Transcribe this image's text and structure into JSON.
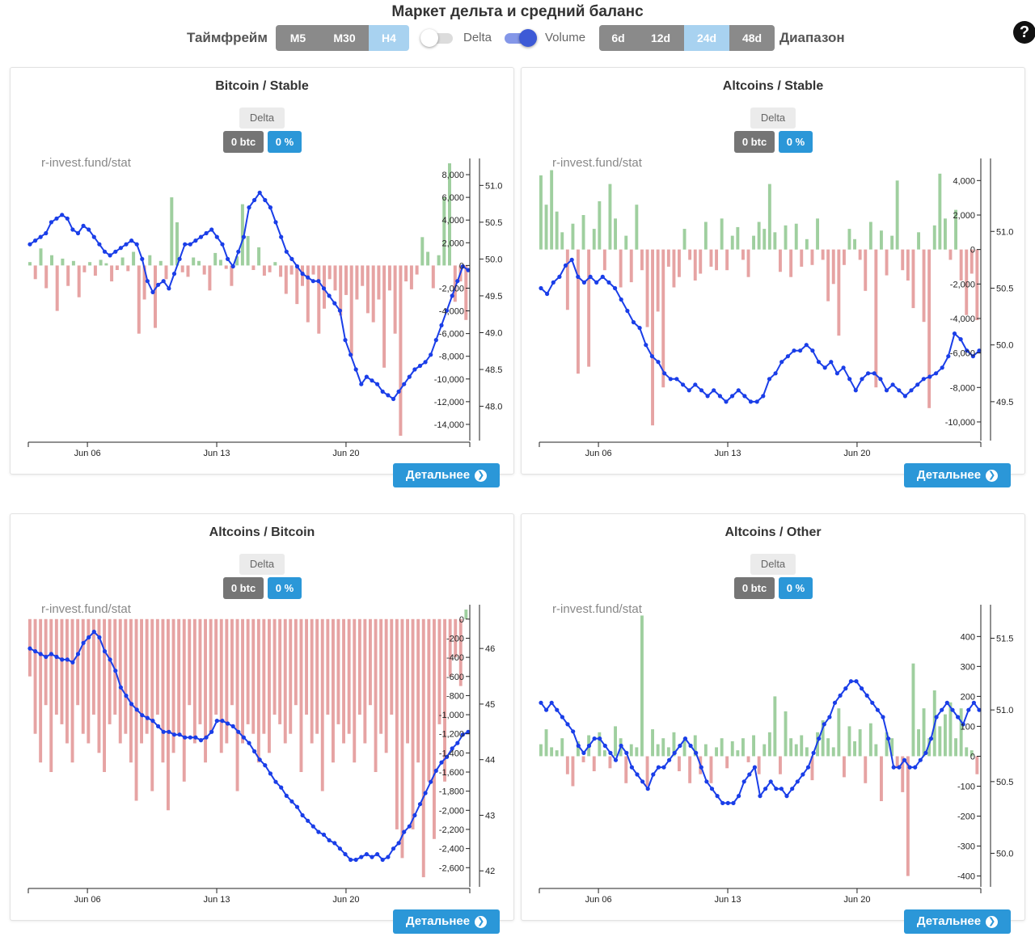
{
  "header": {
    "title": "Маркет дельта и средний баланс",
    "timeframe_label": "Таймфрейм",
    "timeframes": [
      "M5",
      "M30",
      "H4"
    ],
    "timeframe_selected": "H4",
    "toggle_delta": {
      "label": "Delta",
      "on": false
    },
    "toggle_volume": {
      "label": "Volume",
      "on": true
    },
    "ranges": [
      "6d",
      "12d",
      "24d",
      "48d"
    ],
    "range_selected": "24d",
    "range_label": "Диапазон",
    "help_icon": "?"
  },
  "colors": {
    "positive_bar": "#9fcf9f",
    "negative_bar": "#e6a3a3",
    "line": "#1a3ee8",
    "button": "#2b97d8",
    "badge_grey": "#757575",
    "active_segment": "#a8d2f0"
  },
  "panel_common": {
    "delta_tag": "Delta",
    "btc_badge": "0 btc",
    "pct_badge": "0 %",
    "watermark": "r-invest.fund/stat",
    "detail_button": "Детальнее",
    "detail_icon": "chevron-right-circle-icon"
  },
  "panels": [
    {
      "title": "Bitcoin / Stable"
    },
    {
      "title": "Altcoins / Stable"
    },
    {
      "title": "Altcoins / Bitcoin"
    },
    {
      "title": "Altcoins / Other"
    }
  ],
  "chart_data": [
    {
      "type": "bar+line",
      "title": "Bitcoin / Stable",
      "x_ticks": [
        "Jun 06",
        "Jun 13",
        "Jun 20"
      ],
      "x_tick_positions_day": [
        6,
        13,
        20
      ],
      "x_range_day": [
        2.8,
        26.7
      ],
      "bars_left_axis": {
        "ylim": [
          -15000,
          9000
        ],
        "ticks": [
          "8,000",
          "6,000",
          "4,000",
          "2,000",
          "0",
          "-2,000",
          "-4,000",
          "-6,000",
          "-8,000",
          "-10,000",
          "-12,000",
          "-14,000"
        ],
        "tick_values": [
          8000,
          6000,
          4000,
          2000,
          0,
          -2000,
          -4000,
          -6000,
          -8000,
          -10000,
          -12000,
          -14000
        ]
      },
      "line_right_axis": {
        "ylim": [
          47.6,
          51.3
        ],
        "ticks": [
          "51.0",
          "50.5",
          "50.0",
          "49.5",
          "49.0",
          "48.5",
          "48.0"
        ],
        "tick_values": [
          51.0,
          50.5,
          50.0,
          49.5,
          49.0,
          48.5,
          48.0
        ]
      },
      "bar_samples": [
        300,
        -1200,
        1500,
        -2000,
        900,
        -4000,
        600,
        -1800,
        400,
        -2800,
        -600,
        300,
        -900,
        500,
        200,
        -1400,
        -400,
        700,
        -500,
        1200,
        -6000,
        -3000,
        900,
        -5500,
        400,
        -1200,
        6000,
        3800,
        -600,
        -1000,
        700,
        400,
        -800,
        -2200,
        1100,
        500,
        -300,
        -1800,
        800,
        5400,
        2600,
        -400,
        1600,
        -900,
        -600,
        300,
        -1000,
        -2500,
        -800,
        -3400,
        -1800,
        -5000,
        -800,
        -6000,
        -3800,
        -1200,
        -2200,
        -4400,
        -2600,
        -8000,
        -3000,
        -1800,
        -4200,
        -5000,
        -3000,
        -9000,
        -2200,
        -6000,
        -15000,
        -1400,
        -2100,
        -800,
        2500,
        1200,
        -2000,
        900,
        6000,
        9000,
        -3200,
        -1400,
        -4800
      ],
      "line_samples": [
        50.2,
        50.25,
        50.3,
        50.35,
        50.5,
        50.55,
        50.6,
        50.55,
        50.4,
        50.35,
        50.45,
        50.4,
        50.3,
        50.2,
        50.1,
        50.05,
        50.1,
        50.15,
        50.2,
        50.25,
        50.2,
        50.0,
        49.7,
        49.55,
        49.65,
        49.7,
        49.6,
        49.8,
        50.0,
        50.2,
        50.2,
        50.25,
        50.3,
        50.35,
        50.4,
        50.3,
        50.2,
        50.0,
        49.9,
        50.1,
        50.3,
        50.7,
        50.8,
        50.9,
        50.8,
        50.7,
        50.5,
        50.3,
        50.1,
        50.0,
        49.9,
        49.8,
        49.75,
        49.7,
        49.7,
        49.6,
        49.5,
        49.4,
        49.3,
        48.9,
        48.7,
        48.5,
        48.3,
        48.4,
        48.35,
        48.3,
        48.2,
        48.15,
        48.1,
        48.2,
        48.3,
        48.4,
        48.5,
        48.55,
        48.6,
        48.7,
        48.9,
        49.1,
        49.3,
        49.5,
        49.7,
        49.9,
        49.85
      ]
    },
    {
      "type": "bar+line",
      "title": "Altcoins / Stable",
      "x_ticks": [
        "Jun 06",
        "Jun 13",
        "Jun 20"
      ],
      "x_tick_positions_day": [
        6,
        13,
        20
      ],
      "x_range_day": [
        2.8,
        26.7
      ],
      "bars_left_axis": {
        "ylim": [
          -10800,
          5000
        ],
        "ticks": [
          "4,000",
          "2,000",
          "0",
          "-2,000",
          "-4,000",
          "-6,000",
          "-8,000",
          "-10,000"
        ],
        "tick_values": [
          4000,
          2000,
          0,
          -2000,
          -4000,
          -6000,
          -8000,
          -10000
        ]
      },
      "line_right_axis": {
        "ylim": [
          49.2,
          51.6
        ],
        "ticks": [
          "51.0",
          "50.5",
          "50.0",
          "49.5"
        ],
        "tick_values": [
          51.0,
          50.5,
          50.0,
          49.5
        ]
      },
      "bar_samples": [
        4300,
        2600,
        4600,
        2200,
        1000,
        -3500,
        1500,
        -7200,
        2000,
        -6800,
        1200,
        2800,
        -1200,
        3800,
        1800,
        -2200,
        800,
        -1900,
        2600,
        -1200,
        -4500,
        -10200,
        -3600,
        -8000,
        -1000,
        -2200,
        -1600,
        1200,
        -600,
        -1800,
        -1400,
        1600,
        -1000,
        -1200,
        1800,
        -1200,
        800,
        1300,
        -600,
        -1600,
        800,
        1600,
        1200,
        3800,
        1000,
        -1300,
        1400,
        -1600,
        1500,
        -1000,
        600,
        -900,
        1800,
        -600,
        -3000,
        -2000,
        -5000,
        -900,
        1200,
        600,
        -600,
        -2400,
        1600,
        -8000,
        1100,
        -1500,
        800,
        4000,
        -1200,
        -1800,
        -3400,
        1000,
        -4200,
        -9200,
        1400,
        4400,
        1800,
        -600,
        2300,
        -1800,
        -3800,
        -1400,
        -4100
      ],
      "line_samples": [
        50.5,
        50.45,
        50.55,
        50.6,
        50.7,
        50.75,
        50.6,
        50.55,
        50.6,
        50.55,
        50.6,
        50.55,
        50.5,
        50.4,
        50.3,
        50.2,
        50.15,
        50.0,
        49.9,
        49.85,
        49.75,
        49.7,
        49.7,
        49.65,
        49.6,
        49.65,
        49.6,
        49.55,
        49.6,
        49.55,
        49.5,
        49.55,
        49.6,
        49.55,
        49.5,
        49.5,
        49.55,
        49.7,
        49.75,
        49.85,
        49.9,
        49.95,
        49.95,
        50.0,
        49.95,
        49.85,
        49.8,
        49.85,
        49.75,
        49.8,
        49.7,
        49.6,
        49.7,
        49.75,
        49.75,
        49.7,
        49.6,
        49.65,
        49.6,
        49.55,
        49.6,
        49.65,
        49.7,
        49.72,
        49.75,
        49.8,
        49.9,
        50.1,
        50.05,
        49.95,
        49.9,
        49.95
      ]
    },
    {
      "type": "bar+line",
      "title": "Altcoins / Bitcoin",
      "x_ticks": [
        "Jun 06",
        "Jun 13",
        "Jun 20"
      ],
      "x_tick_positions_day": [
        6,
        13,
        20
      ],
      "x_range_day": [
        2.8,
        26.7
      ],
      "bars_left_axis": {
        "ylim": [
          -2750,
          100
        ],
        "ticks": [
          "0",
          "-200",
          "-400",
          "-600",
          "-800",
          "-1,000",
          "-1,200",
          "-1,400",
          "-1,600",
          "-1,800",
          "-2,000",
          "-2,200",
          "-2,400",
          "-2,600"
        ],
        "tick_values": [
          0,
          -200,
          -400,
          -600,
          -800,
          -1000,
          -1200,
          -1400,
          -1600,
          -1800,
          -2000,
          -2200,
          -2400,
          -2600
        ]
      },
      "line_right_axis": {
        "ylim": [
          41.8,
          46.7
        ],
        "ticks": [
          "46",
          "45",
          "44",
          "43",
          "42"
        ],
        "tick_values": [
          46,
          45,
          44,
          43,
          42
        ]
      },
      "bar_samples": [
        -600,
        -1200,
        -1500,
        -900,
        -1600,
        -1000,
        -1100,
        -1300,
        -1500,
        -900,
        -1200,
        -1300,
        -1000,
        -1400,
        -1600,
        -1100,
        -1000,
        -1300,
        -1200,
        -1500,
        -1900,
        -1300,
        -1200,
        -1800,
        -1000,
        -1500,
        -2000,
        -1400,
        -1200,
        -1700,
        -900,
        -1300,
        -1100,
        -1500,
        -1200,
        -1000,
        -1400,
        -1300,
        -900,
        -1800,
        -1300,
        -1100,
        -1200,
        -1500,
        -1200,
        -1400,
        -1000,
        -1100,
        -1300,
        -1200,
        -900,
        -1600,
        -1000,
        -1300,
        -1200,
        -1800,
        -1000,
        -1500,
        -1100,
        -1300,
        -1200,
        -1500,
        -1000,
        -1300,
        -900,
        -1600,
        -1200,
        -1400,
        -1000,
        -2200,
        -2500,
        -1300,
        -2200,
        -1500,
        -2700,
        -1700,
        -2300,
        -1100,
        -1700,
        -600,
        -400,
        -700,
        100
      ],
      "line_samples": [
        46.0,
        45.95,
        45.9,
        45.85,
        45.9,
        45.85,
        45.8,
        45.8,
        45.75,
        45.9,
        46.1,
        46.2,
        46.3,
        46.2,
        45.95,
        45.8,
        45.6,
        45.3,
        45.15,
        45.0,
        44.9,
        44.8,
        44.75,
        44.7,
        44.6,
        44.5,
        44.5,
        44.45,
        44.45,
        44.4,
        44.4,
        44.4,
        44.35,
        44.4,
        44.5,
        44.7,
        44.7,
        44.65,
        44.6,
        44.5,
        44.4,
        44.3,
        44.15,
        44.0,
        43.9,
        43.75,
        43.6,
        43.5,
        43.35,
        43.25,
        43.15,
        43.0,
        42.9,
        42.8,
        42.7,
        42.65,
        42.55,
        42.5,
        42.4,
        42.3,
        42.2,
        42.2,
        42.25,
        42.3,
        42.25,
        42.3,
        42.2,
        42.25,
        42.4,
        42.5,
        42.7,
        42.8,
        43.0,
        43.2,
        43.4,
        43.6,
        43.8,
        43.95,
        44.05,
        44.2,
        44.3,
        44.45,
        44.5
      ]
    },
    {
      "type": "bar+line",
      "title": "Altcoins / Other",
      "x_ticks": [
        "Jun 06",
        "Jun 13",
        "Jun 20"
      ],
      "x_tick_positions_day": [
        6,
        13,
        20
      ],
      "x_range_day": [
        2.8,
        26.7
      ],
      "bars_left_axis": {
        "ylim": [
          -420,
          490
        ],
        "ticks": [
          "400",
          "300",
          "200",
          "100",
          "0",
          "-100",
          "-200",
          "-300",
          "-400"
        ],
        "tick_values": [
          400,
          300,
          200,
          100,
          0,
          -100,
          -200,
          -300,
          -400
        ]
      },
      "line_right_axis": {
        "ylim": [
          49.8,
          51.7
        ],
        "ticks": [
          "51.5",
          "51.0",
          "50.5",
          "50.0"
        ],
        "tick_values": [
          51.5,
          51.0,
          50.5,
          50.0
        ]
      },
      "bar_samples": [
        40,
        90,
        30,
        20,
        60,
        -60,
        -100,
        50,
        -20,
        70,
        -50,
        80,
        20,
        -40,
        100,
        60,
        -90,
        40,
        30,
        470,
        -100,
        90,
        40,
        60,
        30,
        80,
        -50,
        60,
        -90,
        70,
        -60,
        40,
        -90,
        30,
        60,
        -40,
        50,
        20,
        60,
        -20,
        70,
        -60,
        40,
        80,
        200,
        -60,
        150,
        60,
        40,
        70,
        30,
        -80,
        80,
        120,
        60,
        30,
        160,
        -70,
        100,
        50,
        90,
        -90,
        110,
        40,
        -150,
        80,
        60,
        -40,
        -120,
        -400,
        310,
        90,
        160,
        60,
        220,
        100,
        140,
        180,
        60,
        160,
        30,
        20,
        -60
      ],
      "line_samples": [
        51.05,
        51.0,
        51.05,
        51.0,
        50.95,
        50.9,
        50.85,
        50.75,
        50.7,
        50.75,
        50.8,
        50.8,
        50.75,
        50.7,
        50.65,
        50.75,
        50.7,
        50.6,
        50.55,
        50.5,
        50.45,
        50.55,
        50.6,
        50.6,
        50.65,
        50.7,
        50.75,
        50.8,
        50.75,
        50.7,
        50.6,
        50.5,
        50.45,
        50.4,
        50.35,
        50.35,
        50.35,
        50.4,
        50.5,
        50.55,
        50.6,
        50.4,
        50.45,
        50.5,
        50.45,
        50.45,
        50.4,
        50.45,
        50.5,
        50.55,
        50.6,
        50.7,
        50.8,
        50.9,
        50.95,
        51.05,
        51.1,
        51.15,
        51.2,
        51.2,
        51.15,
        51.1,
        51.05,
        51.0,
        50.95,
        50.8,
        50.6,
        50.6,
        50.65,
        50.6,
        50.6,
        50.65,
        50.7,
        50.8,
        50.95,
        51.0,
        51.05,
        51.0,
        50.95,
        50.9,
        51.0,
        51.05,
        51.0
      ]
    }
  ]
}
